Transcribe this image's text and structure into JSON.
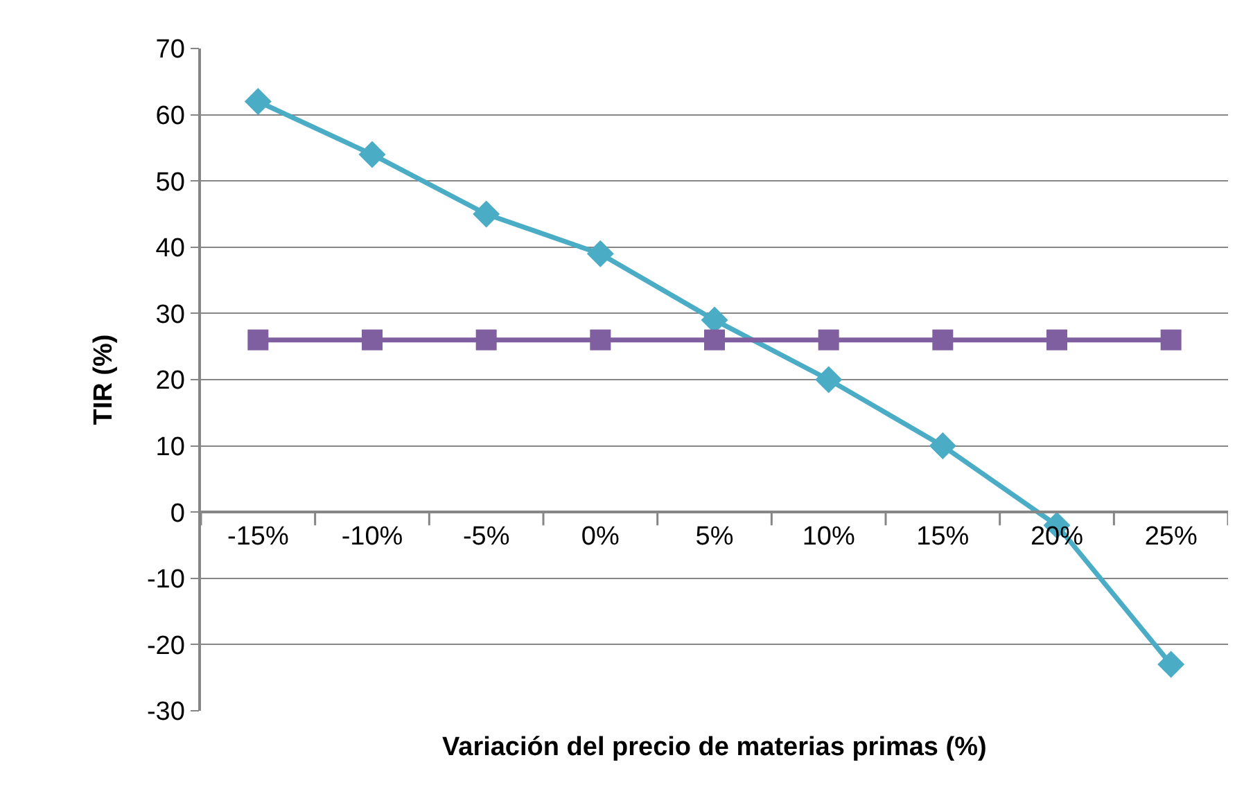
{
  "chart_data": {
    "type": "line",
    "xlabel": "Variación del precio de materias primas (%)",
    "ylabel": "TIR (%)",
    "categories": [
      "-15%",
      "-10%",
      "-5%",
      "0%",
      "5%",
      "10%",
      "15%",
      "20%",
      "25%"
    ],
    "series": [
      {
        "color": "#4bacc6",
        "marker": "diamond",
        "values": [
          62,
          54,
          45,
          39,
          29,
          20,
          10,
          -2,
          -23
        ]
      },
      {
        "color": "#7f5f9f",
        "marker": "square",
        "values": [
          26,
          26,
          26,
          26,
          26,
          26,
          26,
          26,
          26
        ]
      }
    ],
    "ylim": [
      -30,
      70
    ],
    "yticks": [
      -30,
      -20,
      -10,
      0,
      10,
      20,
      30,
      40,
      50,
      60,
      70
    ],
    "grid": "y",
    "legend": false,
    "line_style": "solid"
  }
}
